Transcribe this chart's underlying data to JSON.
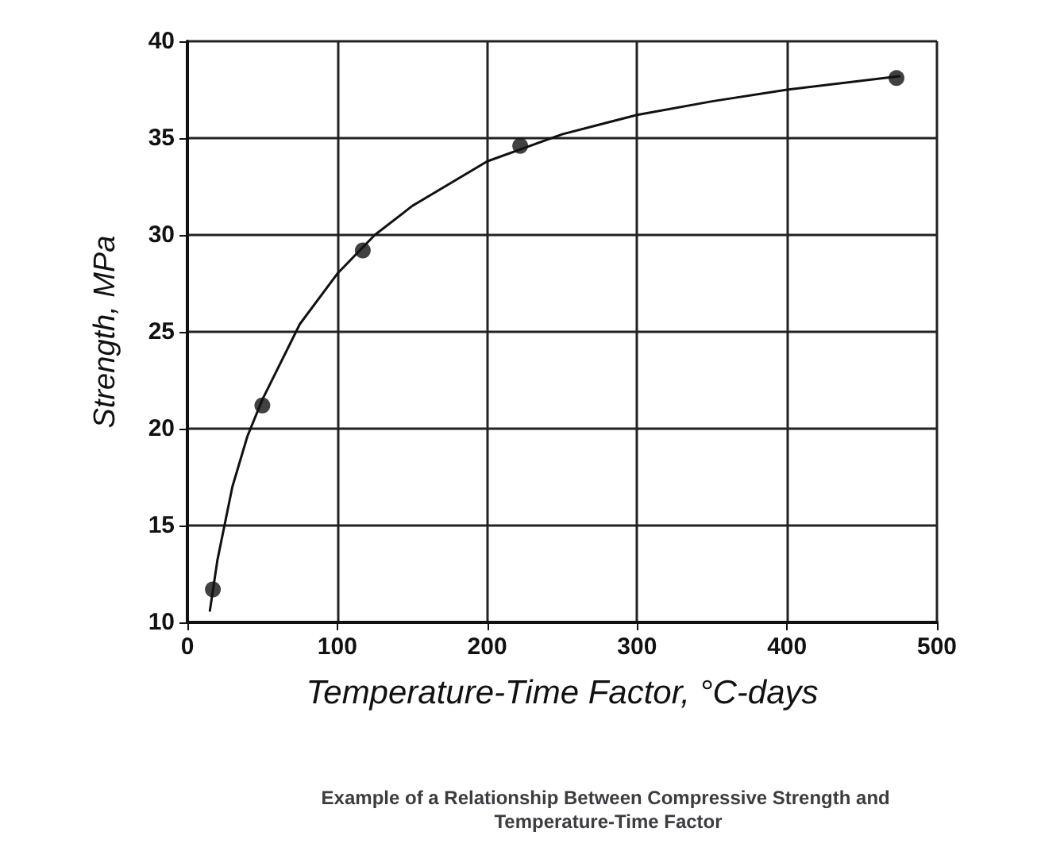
{
  "chart_data": {
    "type": "scatter",
    "title": "Example of a Relationship Between Compressive Strength and Temperature-Time Factor",
    "xlabel": "Temperature-Time Factor, °C-days",
    "ylabel": "Strength, MPa",
    "xlim": [
      0,
      500
    ],
    "xticks": [
      0,
      100,
      200,
      300,
      400,
      500
    ],
    "ylim": [
      10,
      40
    ],
    "yticks": [
      10,
      15,
      20,
      25,
      30,
      35,
      40
    ],
    "grid": true,
    "series": [
      {
        "color": "#111111",
        "marker": "circle",
        "x": [
          17,
          50,
          117,
          222,
          473
        ],
        "values": [
          11.7,
          21.2,
          29.2,
          34.6,
          38.1
        ]
      },
      {
        "type": "line",
        "color": "#111111",
        "marker": "none",
        "line_style": "solid",
        "x": [
          15,
          20,
          30,
          40,
          50,
          75,
          100,
          125,
          150,
          200,
          250,
          300,
          350,
          400,
          475
        ],
        "values": [
          10.6,
          13.2,
          17,
          19.6,
          21.5,
          25.4,
          28,
          30,
          31.5,
          33.8,
          35.2,
          36.2,
          36.9,
          37.5,
          38.2
        ]
      }
    ]
  }
}
